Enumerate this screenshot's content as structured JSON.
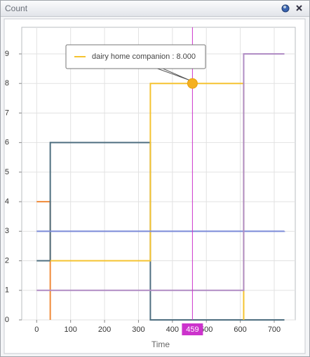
{
  "window_title": "Count",
  "chart_data": {
    "type": "step",
    "xlabel": "Time",
    "xlim": [
      -44,
      762
    ],
    "xticks": [
      0,
      100,
      200,
      300,
      400,
      500,
      600,
      700
    ],
    "ylim": [
      0,
      9.9
    ],
    "yticks": [
      0,
      1,
      2,
      3,
      4,
      5,
      6,
      7,
      8,
      9
    ],
    "grid": true,
    "series": [
      {
        "color": "#f08a38",
        "x": [
          0,
          40
        ],
        "values": [
          4,
          0
        ]
      },
      {
        "color": "#4f6f80",
        "x": [
          0,
          40,
          335,
          730
        ],
        "values": [
          2,
          6,
          0,
          0
        ]
      },
      {
        "color": "#f5c330",
        "x": [
          40,
          335,
          610
        ],
        "values": [
          2,
          8,
          0
        ]
      },
      {
        "color": "#7b8ad8",
        "x": [
          0,
          730
        ],
        "values": [
          3,
          3
        ]
      },
      {
        "color": "#b08cc4",
        "x": [
          0,
          610,
          730
        ],
        "values": [
          1,
          9,
          9
        ]
      }
    ],
    "crosshair_x": 459,
    "crosshair_color": "#cc33cc",
    "tooltip": {
      "text": "dairy home companion : 8.000",
      "series": 2,
      "value": 8
    }
  }
}
